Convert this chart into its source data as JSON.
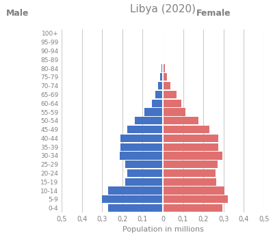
{
  "title": "Libya (2020)",
  "age_groups": [
    "0-4",
    "5-9",
    "10-14",
    "15-19",
    "20-24",
    "25-29",
    "30-34",
    "35-39",
    "40-44",
    "45-49",
    "50-54",
    "55-59",
    "60-64",
    "65-69",
    "70-74",
    "75-79",
    "80-84",
    "85-89",
    "90-94",
    "95-99",
    "100+"
  ],
  "male": [
    0.27,
    0.3,
    0.27,
    0.185,
    0.175,
    0.185,
    0.215,
    0.21,
    0.21,
    0.175,
    0.14,
    0.09,
    0.055,
    0.038,
    0.024,
    0.015,
    0.008,
    0.003,
    0.001,
    0.0,
    0.0
  ],
  "female": [
    0.295,
    0.32,
    0.305,
    0.265,
    0.26,
    0.27,
    0.295,
    0.275,
    0.275,
    0.23,
    0.175,
    0.11,
    0.09,
    0.068,
    0.038,
    0.02,
    0.011,
    0.005,
    0.002,
    0.001,
    0.0
  ],
  "male_color": "#4472C4",
  "female_color": "#E07070",
  "background_color": "#FFFFFF",
  "grid_color": "#CCCCCC",
  "label_color": "#808080",
  "xlim": 0.5,
  "xlabel": "Population in millions",
  "male_label": "Male",
  "female_label": "Female",
  "tick_positions": [
    -0.5,
    -0.4,
    -0.3,
    -0.2,
    -0.1,
    0.0,
    0.1,
    0.2,
    0.3,
    0.4,
    0.5
  ],
  "tick_labels": [
    "0,5",
    "0,4",
    "0,3",
    "0,2",
    "0,1",
    "0",
    "0,1",
    "0,2",
    "0,3",
    "0,4",
    "0,5"
  ]
}
